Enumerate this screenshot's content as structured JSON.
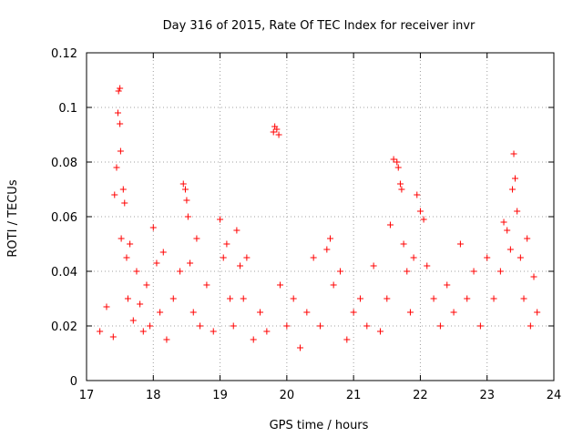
{
  "chart_data": {
    "type": "scatter",
    "title": "Day 316 of 2015, Rate Of TEC Index for receiver invr",
    "xlabel": "GPS time / hours",
    "ylabel": "ROTI / TECUs",
    "xlim": [
      17,
      24
    ],
    "ylim": [
      0,
      0.12
    ],
    "x_ticks": [
      17,
      18,
      19,
      20,
      21,
      22,
      23,
      24
    ],
    "x_tick_labels": [
      "17",
      "18",
      "19",
      "20",
      "21",
      "22",
      "23",
      "24"
    ],
    "y_ticks": [
      0,
      0.02,
      0.04,
      0.06,
      0.08,
      0.1,
      0.12
    ],
    "y_tick_labels": [
      "0",
      "0.02",
      "0.04",
      "0.06",
      "0.08",
      "0.1",
      "0.12"
    ],
    "grid": true,
    "marker": "plus",
    "color": "#ff0000",
    "series": [
      {
        "name": "ROTI",
        "x": [
          17.2,
          17.3,
          17.4,
          17.42,
          17.45,
          17.47,
          17.48,
          17.5,
          17.5,
          17.51,
          17.52,
          17.55,
          17.57,
          17.6,
          17.62,
          17.65,
          17.7,
          17.75,
          17.8,
          17.85,
          17.9,
          17.95,
          18.0,
          18.05,
          18.1,
          18.15,
          18.2,
          18.3,
          18.4,
          18.45,
          18.48,
          18.5,
          18.52,
          18.55,
          18.6,
          18.65,
          18.7,
          18.8,
          18.9,
          19.0,
          19.05,
          19.1,
          19.15,
          19.2,
          19.25,
          19.3,
          19.35,
          19.4,
          19.5,
          19.6,
          19.7,
          19.8,
          19.82,
          19.85,
          19.88,
          19.9,
          20.0,
          20.1,
          20.2,
          20.3,
          20.4,
          20.5,
          20.6,
          20.65,
          20.7,
          20.8,
          20.9,
          21.0,
          21.1,
          21.2,
          21.3,
          21.4,
          21.5,
          21.55,
          21.6,
          21.65,
          21.67,
          21.7,
          21.72,
          21.75,
          21.8,
          21.85,
          21.9,
          21.95,
          22.0,
          22.05,
          22.1,
          22.2,
          22.3,
          22.4,
          22.5,
          22.6,
          22.7,
          22.8,
          22.9,
          23.0,
          23.1,
          23.2,
          23.25,
          23.3,
          23.35,
          23.38,
          23.4,
          23.42,
          23.45,
          23.5,
          23.55,
          23.6,
          23.65,
          23.7,
          23.75
        ],
        "y": [
          0.018,
          0.027,
          0.016,
          0.068,
          0.078,
          0.098,
          0.106,
          0.107,
          0.094,
          0.084,
          0.052,
          0.07,
          0.065,
          0.045,
          0.03,
          0.05,
          0.022,
          0.04,
          0.028,
          0.018,
          0.035,
          0.02,
          0.056,
          0.043,
          0.025,
          0.047,
          0.015,
          0.03,
          0.04,
          0.072,
          0.07,
          0.066,
          0.06,
          0.043,
          0.025,
          0.052,
          0.02,
          0.035,
          0.018,
          0.059,
          0.045,
          0.05,
          0.03,
          0.02,
          0.055,
          0.042,
          0.03,
          0.045,
          0.015,
          0.025,
          0.018,
          0.091,
          0.093,
          0.092,
          0.09,
          0.035,
          0.02,
          0.03,
          0.012,
          0.025,
          0.045,
          0.02,
          0.048,
          0.052,
          0.035,
          0.04,
          0.015,
          0.025,
          0.03,
          0.02,
          0.042,
          0.018,
          0.03,
          0.057,
          0.081,
          0.08,
          0.078,
          0.072,
          0.07,
          0.05,
          0.04,
          0.025,
          0.045,
          0.068,
          0.062,
          0.059,
          0.042,
          0.03,
          0.02,
          0.035,
          0.025,
          0.05,
          0.03,
          0.04,
          0.02,
          0.045,
          0.03,
          0.04,
          0.058,
          0.055,
          0.048,
          0.07,
          0.083,
          0.074,
          0.062,
          0.045,
          0.03,
          0.052,
          0.02,
          0.038,
          0.025
        ]
      }
    ]
  }
}
